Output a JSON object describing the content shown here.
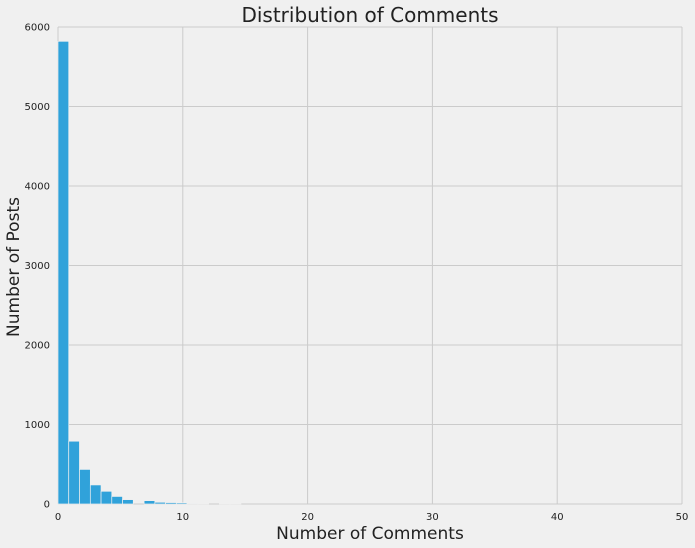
{
  "chart_data": {
    "type": "bar",
    "title": "Distribution of Comments",
    "xlabel": "Number of Comments",
    "ylabel": "Number of Posts",
    "xlim": [
      0,
      50
    ],
    "ylim": [
      0,
      6000
    ],
    "xticks": [
      0,
      10,
      20,
      30,
      40,
      50
    ],
    "yticks": [
      0,
      1000,
      2000,
      3000,
      4000,
      5000,
      6000
    ],
    "grid": true,
    "bar_color": "#30a2da",
    "bins": [
      {
        "x0": 0,
        "x1": 0.86,
        "count": 5820
      },
      {
        "x0": 0.86,
        "x1": 1.72,
        "count": 790
      },
      {
        "x0": 1.72,
        "x1": 2.59,
        "count": 435
      },
      {
        "x0": 2.59,
        "x1": 3.45,
        "count": 240
      },
      {
        "x0": 3.45,
        "x1": 4.31,
        "count": 160
      },
      {
        "x0": 4.31,
        "x1": 5.17,
        "count": 95
      },
      {
        "x0": 5.17,
        "x1": 6.03,
        "count": 55
      },
      {
        "x0": 6.03,
        "x1": 6.9,
        "count": 0
      },
      {
        "x0": 6.9,
        "x1": 7.76,
        "count": 42
      },
      {
        "x0": 7.76,
        "x1": 8.62,
        "count": 22
      },
      {
        "x0": 8.62,
        "x1": 9.48,
        "count": 18
      },
      {
        "x0": 9.48,
        "x1": 10.34,
        "count": 15
      },
      {
        "x0": 10.34,
        "x1": 11.21,
        "count": 7
      },
      {
        "x0": 11.21,
        "x1": 12.07,
        "count": 4
      },
      {
        "x0": 12.07,
        "x1": 12.93,
        "count": 0
      },
      {
        "x0": 12.93,
        "x1": 13.79,
        "count": 3
      },
      {
        "x0": 13.79,
        "x1": 14.66,
        "count": 2
      }
    ]
  }
}
